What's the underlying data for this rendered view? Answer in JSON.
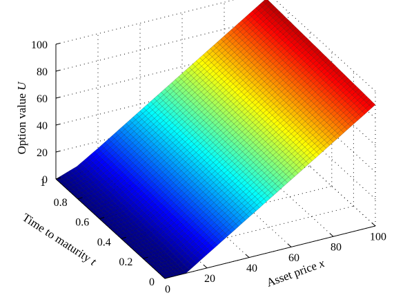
{
  "chart_data": {
    "type": "surface",
    "x_axis": {
      "label": "Asset price",
      "variable": "x",
      "ticks": [
        0,
        20,
        40,
        60,
        80,
        100
      ],
      "range": [
        0,
        100
      ]
    },
    "y_axis": {
      "label": "Time to maturity",
      "variable": "t",
      "ticks": [
        0,
        0.2,
        0.4,
        0.6,
        0.8,
        1
      ],
      "range": [
        0,
        1
      ]
    },
    "z_axis": {
      "label": "Option value",
      "variable": "U",
      "ticks": [
        0,
        20,
        40,
        60,
        80,
        100
      ],
      "range": [
        0,
        100
      ]
    },
    "tick_labels": {
      "x": [
        "0",
        "20",
        "40",
        "60",
        "80",
        "100"
      ],
      "y": [
        "0",
        "0.2",
        "0.4",
        "0.6",
        "0.8",
        "1"
      ],
      "z": [
        "0",
        "20",
        "40",
        "60",
        "80",
        "100"
      ]
    },
    "grid": true,
    "colormap": "jet",
    "surface": {
      "x": [
        0,
        10,
        20,
        30,
        40,
        50,
        60,
        70,
        80,
        90,
        100
      ],
      "t": [
        0,
        0.1,
        0.2,
        0.3,
        0.4,
        0.5,
        0.6,
        0.7,
        0.8,
        0.9,
        1
      ],
      "u_rows_by_t": [
        [
          0,
          0,
          10,
          20,
          30,
          40,
          50,
          60,
          70,
          80,
          90
        ],
        [
          0,
          0.8,
          10.5,
          20.5,
          30.5,
          40.5,
          50.5,
          60.5,
          70.5,
          80.5,
          90.5
        ],
        [
          0,
          1.5,
          11,
          21,
          31,
          41,
          51,
          61,
          71,
          81,
          91
        ],
        [
          0,
          2,
          11.5,
          21.5,
          31.5,
          41.5,
          51.5,
          61.5,
          71.5,
          81.5,
          91.5
        ],
        [
          0,
          2.5,
          12,
          22,
          32,
          42,
          52,
          62,
          72,
          82,
          92
        ],
        [
          0,
          3,
          12.5,
          22.5,
          32.5,
          42.5,
          52.5,
          62.5,
          72.5,
          82.5,
          92.5
        ],
        [
          0,
          3.5,
          13,
          23,
          33,
          43,
          53,
          63,
          73,
          83,
          93
        ],
        [
          0,
          4,
          13.5,
          23.5,
          33.5,
          43.5,
          53.5,
          63.5,
          73.5,
          83.5,
          93.5
        ],
        [
          0,
          4.5,
          14,
          24,
          34,
          44,
          54,
          64,
          74,
          84,
          94
        ],
        [
          0,
          5,
          14.5,
          24.5,
          34.5,
          44.5,
          54.5,
          64.5,
          74.5,
          84.5,
          94.5
        ],
        [
          0,
          5.5,
          15,
          25,
          35,
          45,
          55,
          65,
          75,
          85,
          95
        ]
      ]
    }
  }
}
